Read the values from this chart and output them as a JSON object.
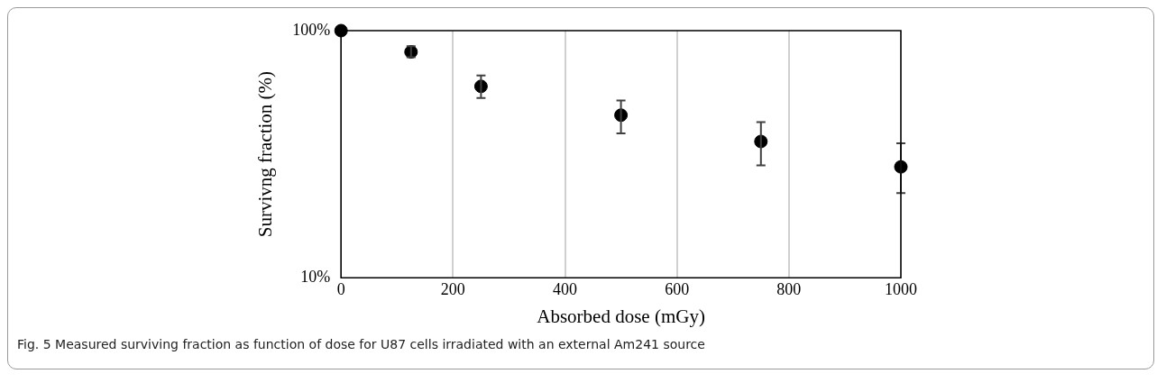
{
  "chart_data": {
    "type": "scatter",
    "xlabel": "Absorbed dose (mGy)",
    "ylabel": "Survivng fraction (%)",
    "x": [
      0,
      125,
      250,
      500,
      750,
      1000
    ],
    "values": [
      100,
      82,
      59.5,
      45.5,
      35.6,
      28.1
    ],
    "errors": [
      null,
      [
        78,
        86.5
      ],
      [
        53.4,
        65.8
      ],
      [
        38.4,
        52.2
      ],
      [
        28.5,
        42.6
      ],
      [
        22,
        35
      ]
    ],
    "color": "#000000",
    "marker": "circle",
    "xlim": [
      0,
      1000
    ],
    "xticks": [
      0,
      200,
      400,
      600,
      800,
      1000
    ],
    "ylim": [
      10,
      100
    ],
    "yticks": [
      {
        "value": 10,
        "label": "10%"
      },
      {
        "value": 100,
        "label": "100%"
      }
    ],
    "log": "y",
    "grid": "x",
    "legend": false,
    "annotations": [
      "Fig. 5 Measured surviving fraction as function of dose for U87 cells irradiated with an external Am241 source"
    ]
  }
}
